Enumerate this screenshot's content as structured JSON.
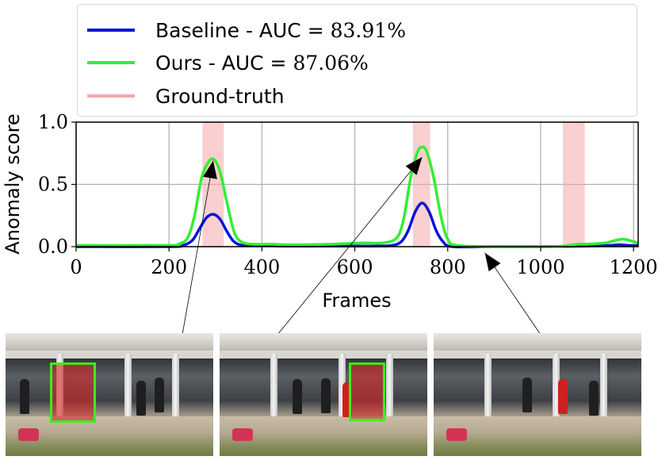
{
  "chart_data": {
    "type": "line",
    "xlabel": "Frames",
    "ylabel": "Anomaly score",
    "xlim": [
      0,
      1210
    ],
    "ylim": [
      0,
      1.0
    ],
    "x_ticks": [
      "0",
      "200",
      "400",
      "600",
      "800",
      "1000",
      "1200"
    ],
    "y_ticks": [
      "0.0",
      "0.5",
      "1.0"
    ],
    "grid": true,
    "legend_position": "top",
    "series": [
      {
        "name": "Baseline - AUC = 83.91%",
        "color": "#0a14d6",
        "x": [
          0,
          200,
          230,
          250,
          265,
          280,
          295,
          310,
          325,
          340,
          360,
          400,
          450,
          550,
          600,
          640,
          680,
          700,
          715,
          730,
          745,
          760,
          775,
          790,
          810,
          900,
          1000,
          1100,
          1150,
          1170,
          1190,
          1210
        ],
        "y": [
          0.0,
          0.0,
          0.01,
          0.05,
          0.14,
          0.23,
          0.26,
          0.22,
          0.12,
          0.04,
          0.01,
          0.01,
          0.005,
          0.005,
          0.005,
          0.005,
          0.01,
          0.04,
          0.13,
          0.28,
          0.35,
          0.28,
          0.13,
          0.04,
          0.0,
          0.0,
          0.0,
          0.005,
          0.01,
          0.015,
          0.01,
          0.01
        ]
      },
      {
        "name": "Ours - AUC = 87.06%",
        "color": "#33ee33",
        "x": [
          0,
          200,
          220,
          240,
          255,
          270,
          285,
          297,
          310,
          325,
          340,
          355,
          380,
          420,
          470,
          550,
          620,
          660,
          690,
          705,
          720,
          735,
          745,
          755,
          770,
          785,
          800,
          820,
          900,
          1000,
          1050,
          1080,
          1100,
          1140,
          1160,
          1180,
          1200,
          1210
        ],
        "y": [
          0.01,
          0.01,
          0.02,
          0.07,
          0.25,
          0.55,
          0.68,
          0.7,
          0.6,
          0.35,
          0.12,
          0.04,
          0.02,
          0.02,
          0.015,
          0.02,
          0.03,
          0.03,
          0.07,
          0.22,
          0.55,
          0.76,
          0.8,
          0.76,
          0.55,
          0.25,
          0.06,
          0.01,
          0.0,
          0.0,
          0.005,
          0.02,
          0.02,
          0.03,
          0.05,
          0.06,
          0.04,
          0.03
        ]
      }
    ],
    "ground_truth_label": "Ground-truth",
    "ground_truth_color": "#f4a8a8",
    "ground_truth_intervals": [
      [
        272,
        318
      ],
      [
        725,
        762
      ],
      [
        1048,
        1095
      ]
    ],
    "annotations": [
      {
        "from_frame": 290,
        "to_frame": 295,
        "to_score": 0.69
      },
      {
        "from_frame": 745,
        "to_frame": 745,
        "to_score": 0.72
      },
      {
        "from_frame": 905,
        "to_frame": 880,
        "to_score": -0.05
      }
    ]
  },
  "legend": {
    "baseline_label": "Baseline - AUC =",
    "baseline_value": "83.91%",
    "ours_label": "Ours - AUC =",
    "ours_value": "87.06%",
    "gt_label": "Ground-truth"
  }
}
